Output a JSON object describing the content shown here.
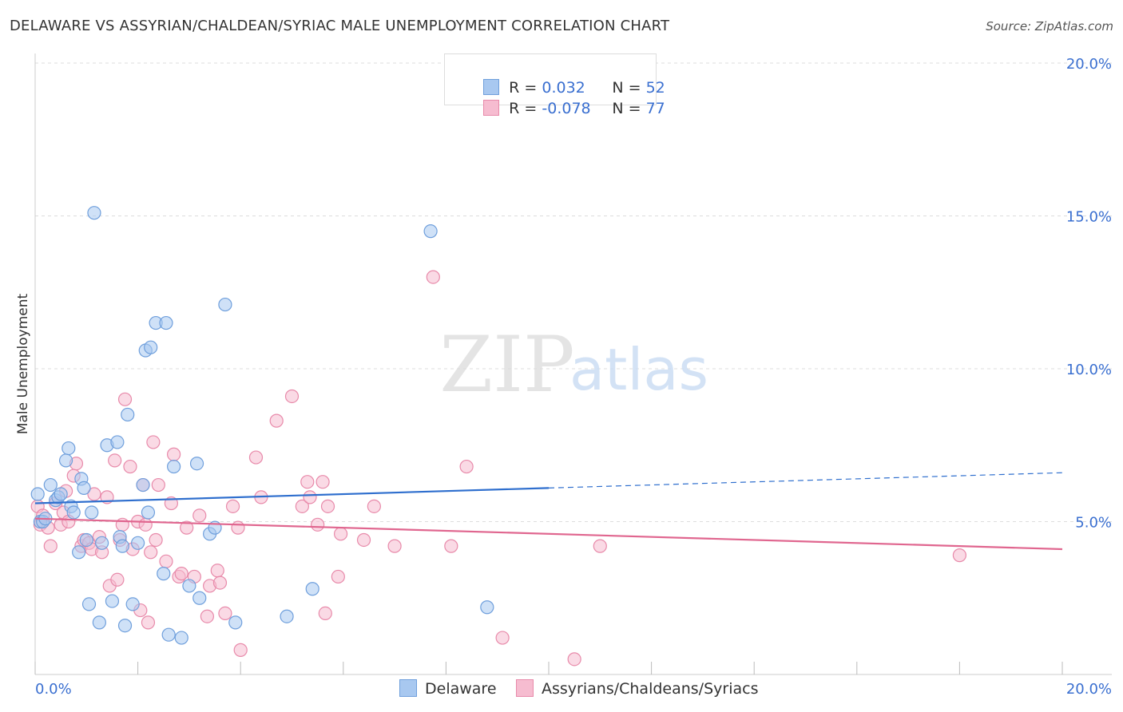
{
  "header": {
    "title": "DELAWARE VS ASSYRIAN/CHALDEAN/SYRIAC MALE UNEMPLOYMENT CORRELATION CHART",
    "source": "Source: ZipAtlas.com"
  },
  "watermark": {
    "zip": "ZIP",
    "atlas": "atlas"
  },
  "legend_top": {
    "rows": [
      {
        "r_label": "R = ",
        "r_value": "0.032",
        "n_label": "N = ",
        "n_value": "52"
      },
      {
        "r_label": "R = ",
        "r_value": "-0.078",
        "n_label": "N = ",
        "n_value": "77"
      }
    ]
  },
  "legend_bottom": {
    "series1": "Delaware",
    "series2": "Assyrians/Chaldeans/Syriacs"
  },
  "colors": {
    "blue_fill": "#a8c8f0",
    "blue_stroke": "#6f9fdc",
    "blue_line": "#2f6fce",
    "pink_fill": "#f6bcd0",
    "pink_stroke": "#e88aaa",
    "pink_line": "#e0668f",
    "tick_label": "#3a6fd0",
    "grid": "#dddddd"
  },
  "chart_data": {
    "type": "scatter",
    "title": "DELAWARE VS ASSYRIAN/CHALDEAN/SYRIAC MALE UNEMPLOYMENT CORRELATION CHART",
    "xlabel": "",
    "ylabel": "Male Unemployment",
    "xlim": [
      0,
      20
    ],
    "ylim": [
      0,
      20
    ],
    "x_tick_labels": [
      "0.0%",
      "20.0%"
    ],
    "y_ticks": [
      5,
      10,
      15,
      20
    ],
    "y_tick_labels": [
      "5.0%",
      "10.0%",
      "15.0%",
      "20.0%"
    ],
    "grid": true,
    "legend_position": "top-center",
    "series": [
      {
        "name": "Delaware",
        "R": 0.032,
        "N": 52,
        "trend": {
          "x0": 0,
          "y0": 5.6,
          "x1": 10,
          "y1": 6.1,
          "dashed_to_x": 20,
          "dashed_to_y": 6.6
        },
        "points": [
          [
            0.05,
            5.9
          ],
          [
            0.1,
            5.0
          ],
          [
            0.15,
            5.0
          ],
          [
            0.2,
            5.1
          ],
          [
            0.3,
            6.2
          ],
          [
            0.4,
            5.7
          ],
          [
            0.45,
            5.8
          ],
          [
            0.5,
            5.9
          ],
          [
            0.6,
            7.0
          ],
          [
            0.65,
            7.4
          ],
          [
            0.7,
            5.5
          ],
          [
            0.75,
            5.3
          ],
          [
            0.85,
            4.0
          ],
          [
            0.9,
            6.4
          ],
          [
            0.95,
            6.1
          ],
          [
            1.0,
            4.4
          ],
          [
            1.05,
            2.3
          ],
          [
            1.1,
            5.3
          ],
          [
            1.15,
            15.1
          ],
          [
            1.25,
            1.7
          ],
          [
            1.3,
            4.3
          ],
          [
            1.4,
            7.5
          ],
          [
            1.5,
            2.4
          ],
          [
            1.6,
            7.6
          ],
          [
            1.65,
            4.5
          ],
          [
            1.7,
            4.2
          ],
          [
            1.75,
            1.6
          ],
          [
            1.8,
            8.5
          ],
          [
            1.9,
            2.3
          ],
          [
            2.0,
            4.3
          ],
          [
            2.1,
            6.2
          ],
          [
            2.15,
            10.6
          ],
          [
            2.2,
            5.3
          ],
          [
            2.25,
            10.7
          ],
          [
            2.35,
            11.5
          ],
          [
            2.5,
            3.3
          ],
          [
            2.55,
            11.5
          ],
          [
            2.6,
            1.3
          ],
          [
            2.7,
            6.8
          ],
          [
            2.85,
            1.2
          ],
          [
            3.0,
            2.9
          ],
          [
            3.15,
            6.9
          ],
          [
            3.2,
            2.5
          ],
          [
            3.4,
            4.6
          ],
          [
            3.5,
            4.8
          ],
          [
            3.7,
            12.1
          ],
          [
            3.9,
            1.7
          ],
          [
            4.9,
            1.9
          ],
          [
            5.4,
            2.8
          ],
          [
            7.7,
            14.5
          ],
          [
            8.8,
            2.2
          ]
        ]
      },
      {
        "name": "Assyrians/Chaldeans/Syriacs",
        "R": -0.078,
        "N": 77,
        "trend": {
          "x0": 0,
          "y0": 5.1,
          "x1": 20,
          "y1": 4.1
        },
        "points": [
          [
            0.05,
            5.5
          ],
          [
            0.1,
            4.9
          ],
          [
            0.15,
            5.2
          ],
          [
            0.25,
            4.8
          ],
          [
            0.3,
            4.2
          ],
          [
            0.4,
            5.6
          ],
          [
            0.5,
            4.9
          ],
          [
            0.55,
            5.3
          ],
          [
            0.6,
            6.0
          ],
          [
            0.65,
            5.0
          ],
          [
            0.75,
            6.5
          ],
          [
            0.8,
            6.9
          ],
          [
            0.9,
            4.2
          ],
          [
            0.95,
            4.4
          ],
          [
            1.05,
            4.3
          ],
          [
            1.1,
            4.1
          ],
          [
            1.15,
            5.9
          ],
          [
            1.25,
            4.5
          ],
          [
            1.3,
            4.0
          ],
          [
            1.4,
            5.8
          ],
          [
            1.45,
            2.9
          ],
          [
            1.55,
            7.0
          ],
          [
            1.6,
            3.1
          ],
          [
            1.65,
            4.4
          ],
          [
            1.7,
            4.9
          ],
          [
            1.75,
            9.0
          ],
          [
            1.85,
            6.8
          ],
          [
            1.9,
            4.1
          ],
          [
            2.0,
            5.0
          ],
          [
            2.05,
            2.1
          ],
          [
            2.1,
            6.2
          ],
          [
            2.15,
            4.9
          ],
          [
            2.2,
            1.7
          ],
          [
            2.25,
            4.0
          ],
          [
            2.3,
            7.6
          ],
          [
            2.35,
            4.4
          ],
          [
            2.4,
            6.2
          ],
          [
            2.55,
            3.7
          ],
          [
            2.65,
            5.6
          ],
          [
            2.7,
            7.2
          ],
          [
            2.8,
            3.2
          ],
          [
            2.85,
            3.3
          ],
          [
            2.95,
            4.8
          ],
          [
            3.1,
            3.2
          ],
          [
            3.2,
            5.2
          ],
          [
            3.35,
            1.9
          ],
          [
            3.4,
            2.9
          ],
          [
            3.55,
            3.4
          ],
          [
            3.6,
            3.0
          ],
          [
            3.7,
            2.0
          ],
          [
            3.85,
            5.5
          ],
          [
            3.95,
            4.8
          ],
          [
            4.0,
            0.8
          ],
          [
            4.3,
            7.1
          ],
          [
            4.4,
            5.8
          ],
          [
            4.7,
            8.3
          ],
          [
            5.0,
            9.1
          ],
          [
            5.2,
            5.5
          ],
          [
            5.3,
            6.3
          ],
          [
            5.35,
            5.8
          ],
          [
            5.5,
            4.9
          ],
          [
            5.6,
            6.3
          ],
          [
            5.65,
            2.0
          ],
          [
            5.7,
            5.5
          ],
          [
            5.9,
            3.2
          ],
          [
            5.95,
            4.6
          ],
          [
            6.4,
            4.4
          ],
          [
            6.6,
            5.5
          ],
          [
            7.0,
            4.2
          ],
          [
            7.75,
            13.0
          ],
          [
            8.1,
            4.2
          ],
          [
            8.4,
            6.8
          ],
          [
            9.1,
            1.2
          ],
          [
            10.5,
            0.5
          ],
          [
            11.0,
            4.2
          ],
          [
            18.0,
            3.9
          ]
        ]
      }
    ]
  }
}
